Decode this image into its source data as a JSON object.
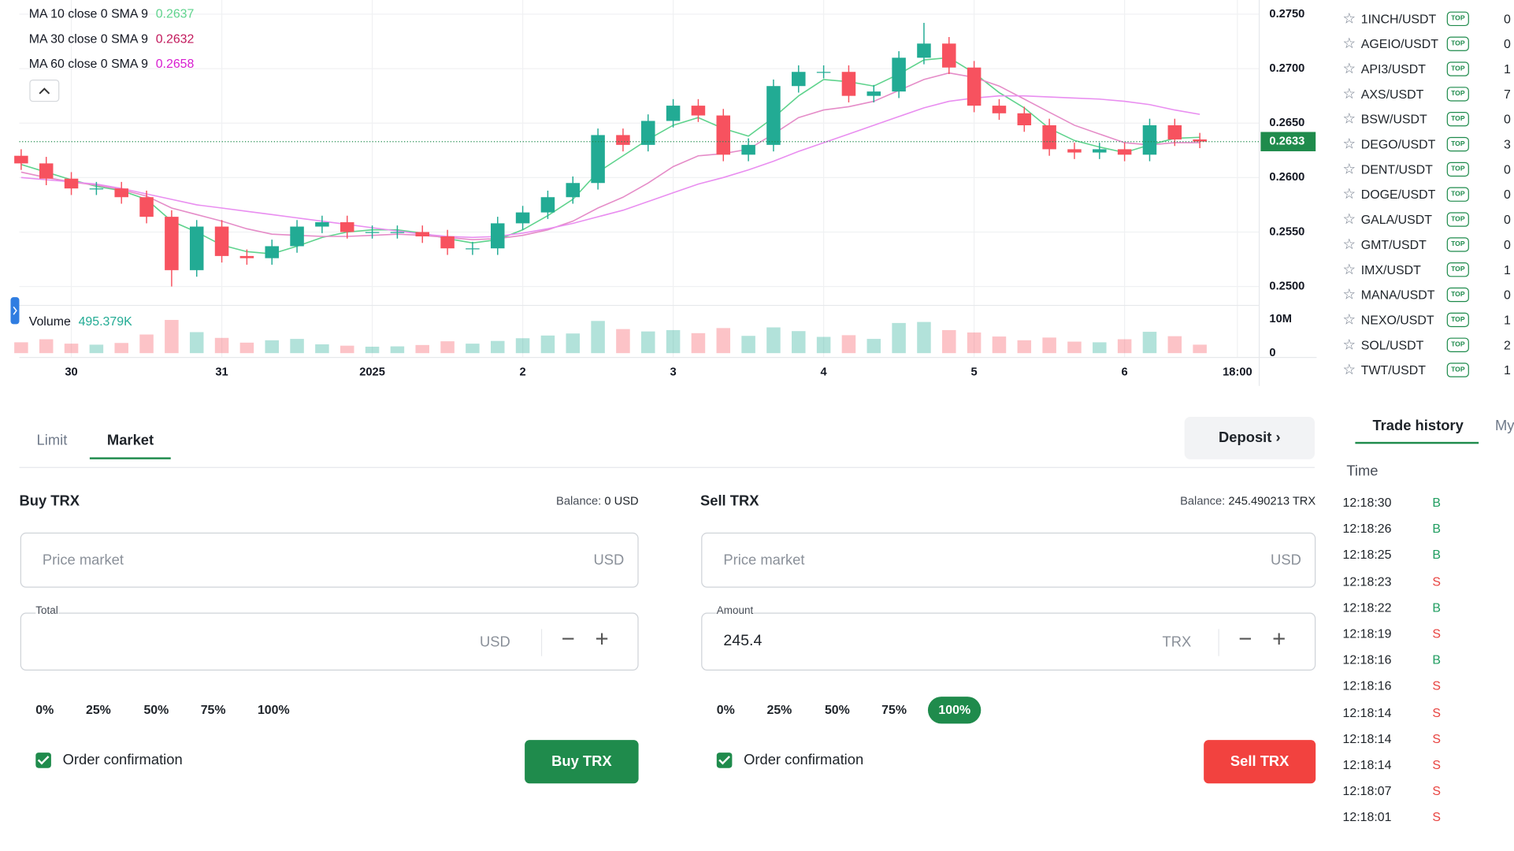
{
  "chart_data": {
    "type": "candlestick",
    "x": [
      -8,
      -4,
      0,
      4,
      8,
      12,
      16,
      20,
      24,
      28,
      32,
      36,
      40,
      44,
      48,
      52,
      56,
      60,
      64,
      68,
      72,
      76,
      80,
      84,
      88,
      92,
      96,
      100,
      104,
      108,
      112,
      116,
      120,
      124,
      128,
      132,
      136,
      140,
      144,
      148,
      152,
      156,
      160,
      164,
      168,
      172,
      176,
      180
    ],
    "open": [
      0.262,
      0.2613,
      0.2599,
      0.259,
      0.259,
      0.2582,
      0.2564,
      0.2515,
      0.2555,
      0.2528,
      0.2526,
      0.2537,
      0.2555,
      0.2559,
      0.255,
      0.255,
      0.255,
      0.2546,
      0.2535,
      0.2535,
      0.2558,
      0.2568,
      0.2582,
      0.2595,
      0.2639,
      0.263,
      0.2652,
      0.2666,
      0.2657,
      0.2621,
      0.263,
      0.2684,
      0.2697,
      0.2697,
      0.2675,
      0.2679,
      0.271,
      0.2723,
      0.2701,
      0.2666,
      0.2659,
      0.2648,
      0.2626,
      0.2623,
      0.2626,
      0.2621,
      0.2648,
      0.2635
    ],
    "high": [
      0.2626,
      0.2619,
      0.2605,
      0.2596,
      0.2596,
      0.2588,
      0.257,
      0.2561,
      0.2561,
      0.2534,
      0.2543,
      0.2561,
      0.2565,
      0.2565,
      0.2556,
      0.2556,
      0.2556,
      0.2552,
      0.2541,
      0.2564,
      0.2574,
      0.2588,
      0.2601,
      0.2645,
      0.2645,
      0.2658,
      0.2672,
      0.2672,
      0.2663,
      0.2636,
      0.269,
      0.2703,
      0.2703,
      0.2703,
      0.2685,
      0.2716,
      0.2742,
      0.2729,
      0.2707,
      0.2672,
      0.2665,
      0.2654,
      0.2632,
      0.2632,
      0.2632,
      0.2654,
      0.2654,
      0.2641
    ],
    "low": [
      0.2607,
      0.2593,
      0.2584,
      0.2584,
      0.2576,
      0.2558,
      0.25,
      0.2509,
      0.2522,
      0.252,
      0.252,
      0.2531,
      0.2549,
      0.2544,
      0.2544,
      0.2544,
      0.254,
      0.2529,
      0.2529,
      0.2529,
      0.2552,
      0.2562,
      0.2576,
      0.2589,
      0.2624,
      0.2624,
      0.2646,
      0.2651,
      0.2615,
      0.2615,
      0.2624,
      0.2678,
      0.2691,
      0.2669,
      0.2669,
      0.2673,
      0.2704,
      0.2695,
      0.266,
      0.2653,
      0.2642,
      0.262,
      0.2617,
      0.2617,
      0.2615,
      0.2615,
      0.2629,
      0.2627
    ],
    "close": [
      0.2613,
      0.2599,
      0.259,
      0.259,
      0.2582,
      0.2564,
      0.2515,
      0.2555,
      0.2528,
      0.2526,
      0.2537,
      0.2555,
      0.2559,
      0.255,
      0.255,
      0.255,
      0.2546,
      0.2535,
      0.2535,
      0.2558,
      0.2568,
      0.2582,
      0.2595,
      0.2639,
      0.263,
      0.2652,
      0.2666,
      0.2657,
      0.2621,
      0.263,
      0.2684,
      0.2697,
      0.2697,
      0.2675,
      0.2679,
      0.271,
      0.2723,
      0.2701,
      0.2666,
      0.2659,
      0.2648,
      0.2626,
      0.2623,
      0.2626,
      0.2621,
      0.2648,
      0.2635,
      0.2633
    ],
    "volume": [
      3200000,
      4100000,
      2800000,
      2500000,
      3000000,
      5500000,
      9800000,
      6200000,
      4500000,
      3100000,
      3800000,
      4200000,
      2600000,
      2200000,
      1900000,
      2000000,
      2400000,
      3500000,
      2800000,
      3600000,
      4400000,
      5200000,
      5800000,
      9500000,
      7100000,
      6400000,
      6800000,
      5900000,
      7400000,
      5100000,
      7600000,
      6500000,
      4800000,
      5300000,
      4200000,
      8900000,
      9200000,
      6800000,
      6100000,
      4900000,
      3800000,
      4600000,
      3400000,
      3200000,
      4100000,
      6300000,
      5000000,
      2500000
    ],
    "up_color": "#22ab94",
    "down_color": "#f7525f",
    "indicators": [
      {
        "name": "MA 10 close 0 SMA 9",
        "value": 0.2637,
        "color": "#5fd38d",
        "values": [
          0.2612,
          0.2605,
          0.2598,
          0.2592,
          0.2588,
          0.258,
          0.256,
          0.255,
          0.2538,
          0.2532,
          0.253,
          0.2537,
          0.2545,
          0.255,
          0.2552,
          0.2552,
          0.2549,
          0.2544,
          0.254,
          0.2543,
          0.2552,
          0.2565,
          0.258,
          0.2605,
          0.262,
          0.2635,
          0.2648,
          0.2655,
          0.2645,
          0.2638,
          0.2655,
          0.2675,
          0.269,
          0.2688,
          0.2684,
          0.2695,
          0.2708,
          0.271,
          0.2696,
          0.2678,
          0.2664,
          0.2645,
          0.2634,
          0.2628,
          0.2623,
          0.263,
          0.2636,
          0.2637
        ]
      },
      {
        "name": "MA 30 close 0 SMA 9",
        "value": 0.2632,
        "color": "#c2185b",
        "line_color": "#e58cc8",
        "values": [
          0.2605,
          0.26,
          0.2596,
          0.2593,
          0.2589,
          0.2583,
          0.2572,
          0.2566,
          0.256,
          0.2553,
          0.2548,
          0.2547,
          0.2546,
          0.2546,
          0.2547,
          0.2548,
          0.2547,
          0.2545,
          0.2543,
          0.2544,
          0.2547,
          0.2552,
          0.256,
          0.2572,
          0.2582,
          0.2595,
          0.261,
          0.262,
          0.2622,
          0.2626,
          0.264,
          0.2655,
          0.2662,
          0.2665,
          0.267,
          0.268,
          0.269,
          0.2696,
          0.2692,
          0.2684,
          0.2672,
          0.266,
          0.2648,
          0.264,
          0.2632,
          0.263,
          0.2632,
          0.2632
        ]
      },
      {
        "name": "MA 60 close 0 SMA 9",
        "value": 0.2658,
        "color": "#d81bd0",
        "line_color": "#e98ef0",
        "values": [
          0.26,
          0.2598,
          0.2596,
          0.2594,
          0.259,
          0.2585,
          0.258,
          0.2575,
          0.2572,
          0.2569,
          0.2566,
          0.2563,
          0.256,
          0.2557,
          0.2554,
          0.2551,
          0.2548,
          0.2546,
          0.2545,
          0.2546,
          0.2549,
          0.2553,
          0.2558,
          0.2564,
          0.257,
          0.2578,
          0.2586,
          0.2594,
          0.26,
          0.2607,
          0.2615,
          0.2624,
          0.2632,
          0.264,
          0.2648,
          0.2656,
          0.2664,
          0.267,
          0.2673,
          0.2675,
          0.2675,
          0.2674,
          0.2673,
          0.2672,
          0.267,
          0.2667,
          0.2662,
          0.2658
        ]
      }
    ],
    "volume_name": "Volume",
    "volume_legend": "495.379K",
    "xlim": [
      -8.3,
      189.4
    ],
    "xticks": [
      {
        "value": 0,
        "label": "30"
      },
      {
        "value": 24,
        "label": "31"
      },
      {
        "value": 48,
        "label": "2025"
      },
      {
        "value": 72,
        "label": "2"
      },
      {
        "value": 96,
        "label": "3"
      },
      {
        "value": 120,
        "label": "4"
      },
      {
        "value": 144,
        "label": "5"
      },
      {
        "value": 168,
        "label": "6"
      },
      {
        "value": 186,
        "label": "18:00"
      }
    ],
    "ylim": [
      0.2484,
      0.2763
    ],
    "yticks": [
      {
        "value": 0.25,
        "label": "0.2500"
      },
      {
        "value": 0.255,
        "label": "0.2550"
      },
      {
        "value": 0.26,
        "label": "0.2600"
      },
      {
        "value": 0.265,
        "label": "0.2650"
      },
      {
        "value": 0.27,
        "label": "0.2700"
      },
      {
        "value": 0.275,
        "label": "0.2750"
      }
    ],
    "y2lim": [
      0,
      13100000
    ],
    "y2ticks": [
      0,
      {
        "value": 10000000,
        "label": "10M"
      }
    ],
    "last_price": 0.2633,
    "last_price_color": "#1f8b4c",
    "grid": true
  },
  "pair_badge": "TOP",
  "pairs": [
    {
      "symbol": "1INCH/USDT",
      "value": "0"
    },
    {
      "symbol": "AGEIO/USDT",
      "value": "0"
    },
    {
      "symbol": "API3/USDT",
      "value": "1"
    },
    {
      "symbol": "AXS/USDT",
      "value": "7"
    },
    {
      "symbol": "BSW/USDT",
      "value": "0"
    },
    {
      "symbol": "DEGO/USDT",
      "value": "3"
    },
    {
      "symbol": "DENT/USDT",
      "value": "0"
    },
    {
      "symbol": "DOGE/USDT",
      "value": "0"
    },
    {
      "symbol": "GALA/USDT",
      "value": "0"
    },
    {
      "symbol": "GMT/USDT",
      "value": "0"
    },
    {
      "symbol": "IMX/USDT",
      "value": "1"
    },
    {
      "symbol": "MANA/USDT",
      "value": "0"
    },
    {
      "symbol": "NEXO/USDT",
      "value": "1"
    },
    {
      "symbol": "SOL/USDT",
      "value": "2"
    },
    {
      "symbol": "TWT/USDT",
      "value": "1"
    }
  ],
  "order_tabs": [
    "Limit",
    "Market"
  ],
  "active_tab": 1,
  "deposit": "Deposit",
  "percent_options": [
    "0%",
    "25%",
    "50%",
    "75%",
    "100%"
  ],
  "buy": {
    "title": "Buy TRX",
    "balance_label": "Balance:",
    "balance": "0 USD",
    "price_placeholder": "Price market",
    "price_unit": "USD",
    "field_label": "Total",
    "field_unit": "USD",
    "confirm": "Order confirmation",
    "checked": true,
    "button": "Buy TRX"
  },
  "sell": {
    "title": "Sell TRX",
    "balance_label": "Balance:",
    "balance": "245.490213 TRX",
    "price_placeholder": "Price market",
    "price_unit": "USD",
    "field_label": "Amount",
    "field_value": "245.4",
    "field_unit": "TRX",
    "active_percent": 4,
    "confirm": "Order confirmation",
    "checked": true,
    "button": "Sell TRX"
  },
  "history_tabs": [
    "Trade history",
    "My"
  ],
  "history_header": "Time",
  "side_colors": {
    "B": "#1f9d60",
    "S": "#e8423f"
  },
  "trades": [
    {
      "time": "12:18:30",
      "side": "B"
    },
    {
      "time": "12:18:26",
      "side": "B"
    },
    {
      "time": "12:18:25",
      "side": "B"
    },
    {
      "time": "12:18:23",
      "side": "S"
    },
    {
      "time": "12:18:22",
      "side": "B"
    },
    {
      "time": "12:18:19",
      "side": "S"
    },
    {
      "time": "12:18:16",
      "side": "B"
    },
    {
      "time": "12:18:16",
      "side": "S"
    },
    {
      "time": "12:18:14",
      "side": "S"
    },
    {
      "time": "12:18:14",
      "side": "S"
    },
    {
      "time": "12:18:14",
      "side": "S"
    },
    {
      "time": "12:18:07",
      "side": "S"
    },
    {
      "time": "12:18:01",
      "side": "S"
    }
  ]
}
